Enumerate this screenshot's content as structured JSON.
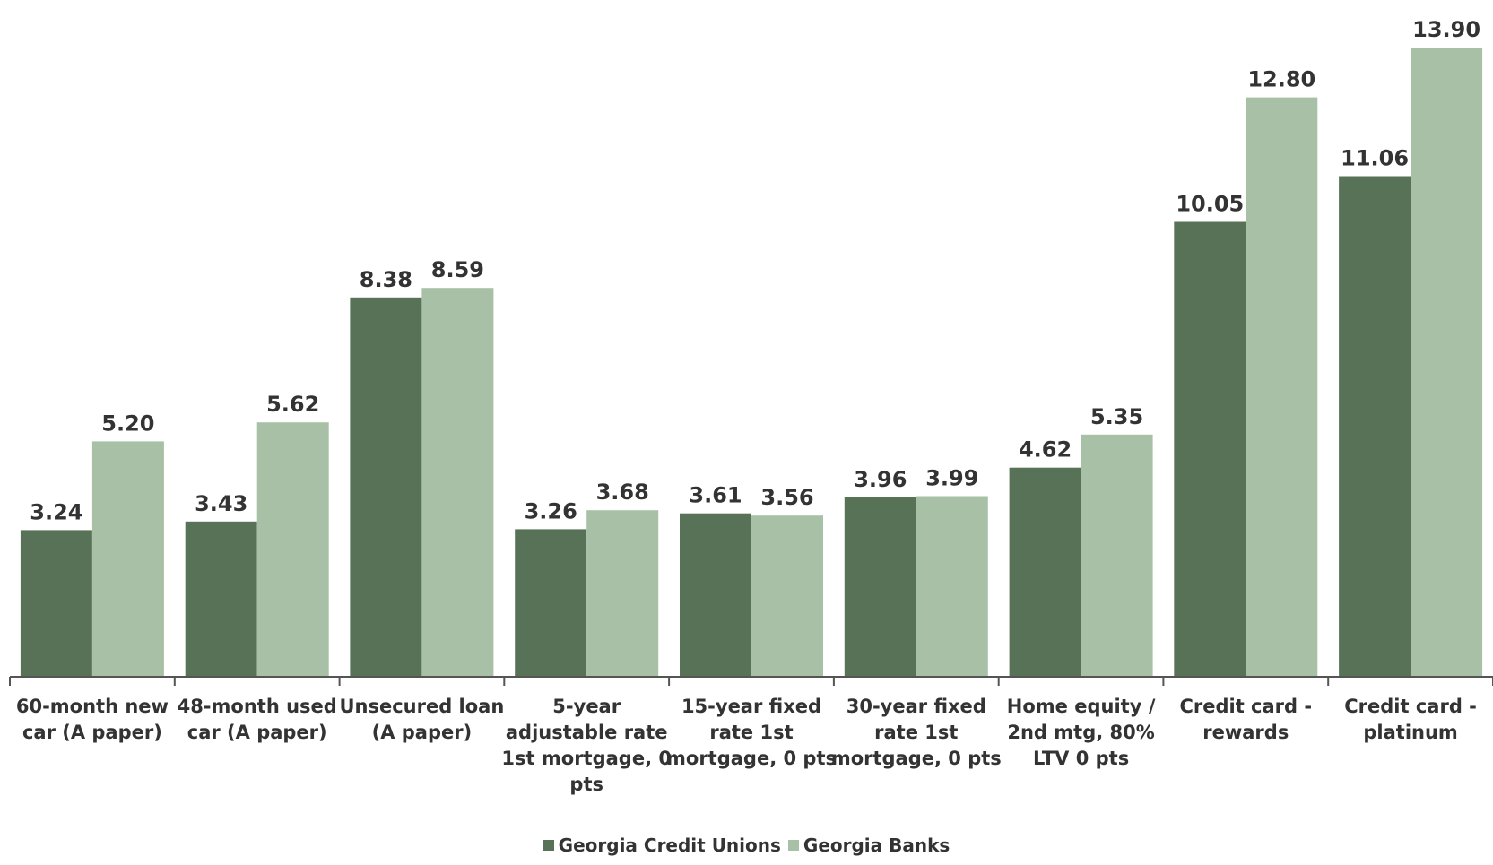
{
  "chart_data": {
    "type": "bar",
    "categories": [
      "60-month new car (A paper)",
      "48-month used car (A paper)",
      "Unsecured loan (A paper)",
      "5-year adjustable rate 1st mortgage, 0 pts",
      "15-year fixed rate 1st mortgage, 0 pts",
      "30-year fixed rate 1st mortgage, 0 pts",
      "Home equity / 2nd mtg, 80% LTV 0 pts",
      "Credit card - rewards",
      "Credit card - platinum"
    ],
    "category_lines": [
      [
        "60-month new",
        "car (A paper)"
      ],
      [
        "48-month used",
        "car (A paper)"
      ],
      [
        "Unsecured loan",
        "(A paper)"
      ],
      [
        "5-year",
        "adjustable rate",
        "1st mortgage, 0",
        "pts"
      ],
      [
        "15-year fixed",
        "rate 1st",
        "mortgage, 0 pts"
      ],
      [
        "30-year fixed",
        "rate 1st",
        "mortgage, 0 pts"
      ],
      [
        "Home equity /",
        "2nd mtg, 80%",
        "LTV 0 pts"
      ],
      [
        "Credit card -",
        "rewards"
      ],
      [
        "Credit card -",
        "platinum"
      ]
    ],
    "series": [
      {
        "name": "Georgia Credit Unions",
        "color": "#587258",
        "values": [
          3.24,
          3.43,
          8.38,
          3.26,
          3.61,
          3.96,
          4.62,
          10.05,
          11.06
        ],
        "labels": [
          "3.24",
          "3.43",
          "8.38",
          "3.26",
          "3.61",
          "3.96",
          "4.62",
          "10.05",
          "11.06"
        ]
      },
      {
        "name": "Georgia Banks",
        "color": "#a8c1a6",
        "values": [
          5.2,
          5.62,
          8.59,
          3.68,
          3.56,
          3.99,
          5.35,
          12.8,
          13.9
        ],
        "labels": [
          "5.20",
          "5.62",
          "8.59",
          "3.68",
          "3.56",
          "3.99",
          "5.35",
          "12.80",
          "13.90"
        ]
      }
    ],
    "ylim": [
      0,
      14
    ],
    "grid": false,
    "legend_position": "bottom-center"
  }
}
